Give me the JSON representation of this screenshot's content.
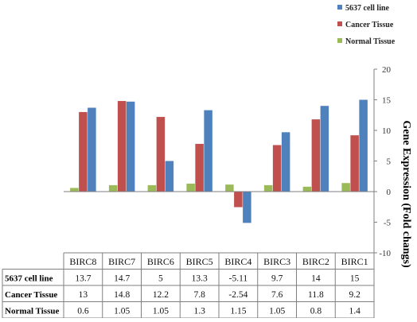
{
  "chart_data": {
    "type": "bar",
    "categories": [
      "BIRC8",
      "BIRC7",
      "BIRC6",
      "BIRC5",
      "BIRC4",
      "BIRC3",
      "BIRC2",
      "BIRC1"
    ],
    "series": [
      {
        "name": "5637 cell line",
        "color": "#4f81bd",
        "values": [
          13.7,
          14.7,
          5,
          13.3,
          -5.11,
          9.7,
          14,
          15
        ],
        "labels": [
          "13.7",
          "14.7",
          "5",
          "13.3",
          "-5.11",
          "9.7",
          "14",
          "15"
        ]
      },
      {
        "name": "Cancer Tissue",
        "color": "#c0504d",
        "values": [
          13,
          14.8,
          12.2,
          7.8,
          -2.54,
          7.6,
          11.8,
          9.2
        ],
        "labels": [
          "13",
          "14.8",
          "12.2",
          "7.8",
          "-2.54",
          "7.6",
          "11.8",
          "9.2"
        ]
      },
      {
        "name": "Normal Tissue",
        "color": "#9bbb59",
        "values": [
          0.6,
          1.05,
          1.05,
          1.3,
          1.15,
          1.05,
          0.8,
          1.4
        ],
        "labels": [
          "0.6",
          "1.05",
          "1.05",
          "1.3",
          "1.15",
          "1.05",
          "0.8",
          "1.4"
        ]
      }
    ],
    "draw_order": [
      2,
      1,
      0
    ],
    "legend_order": [
      0,
      1,
      2
    ],
    "ylim": [
      -10,
      20
    ],
    "yticks": [
      "-10",
      "-5",
      "0",
      "5",
      "10",
      "15",
      "20"
    ],
    "ytick_values": [
      -10,
      -5,
      0,
      5,
      10,
      15,
      20
    ],
    "ylabel": "Gene Expression (Fold changs)",
    "xlabel": "",
    "title": "",
    "legend_position": "top-right",
    "grid": false,
    "data_table": true
  }
}
